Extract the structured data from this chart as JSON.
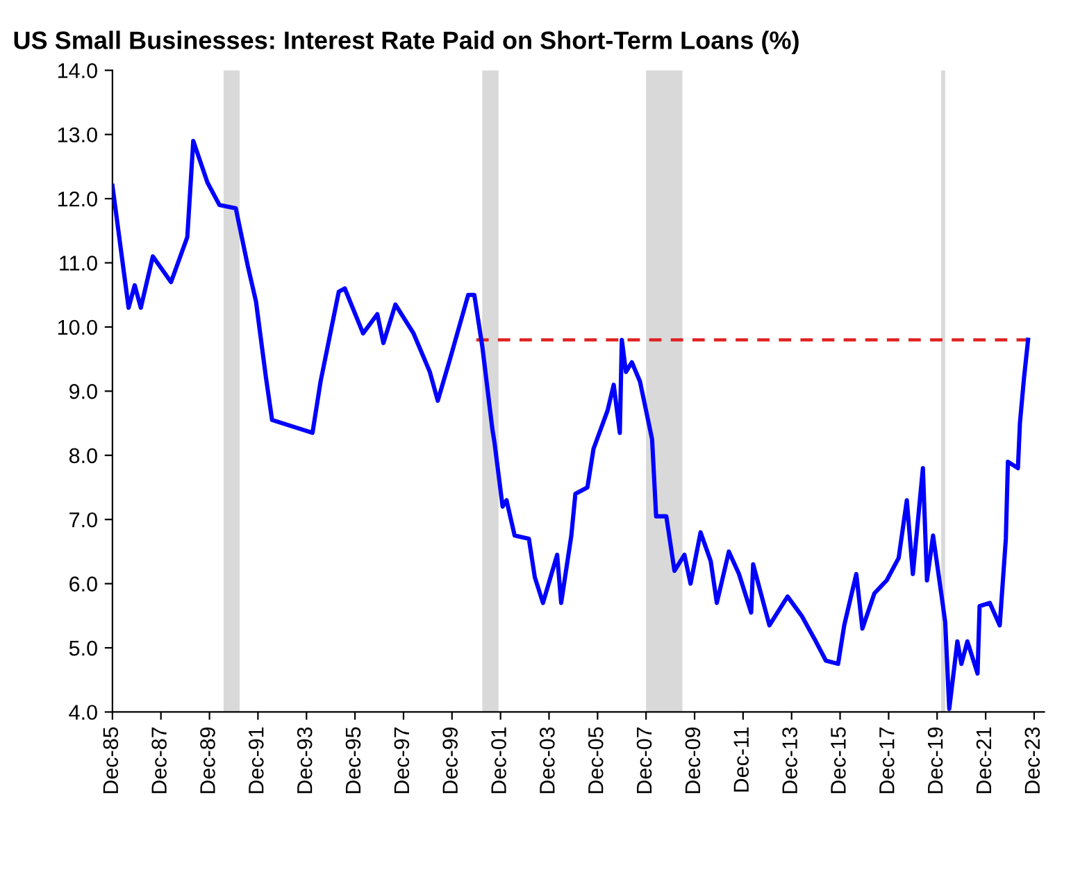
{
  "chart_data": {
    "type": "line",
    "title": "US Small Businesses: Interest Rate Paid on Short-Term Loans (%)",
    "grid": false,
    "marker": "none",
    "xlim": [
      "1985-12",
      "2024-05"
    ],
    "xticks": [
      {
        "value": "1985-12",
        "label": "Dec-85"
      },
      {
        "value": "1987-12",
        "label": "Dec-87"
      },
      {
        "value": "1989-12",
        "label": "Dec-89"
      },
      {
        "value": "1991-12",
        "label": "Dec-91"
      },
      {
        "value": "1993-12",
        "label": "Dec-93"
      },
      {
        "value": "1995-12",
        "label": "Dec-95"
      },
      {
        "value": "1997-12",
        "label": "Dec-97"
      },
      {
        "value": "1999-12",
        "label": "Dec-99"
      },
      {
        "value": "2001-12",
        "label": "Dec-01"
      },
      {
        "value": "2003-12",
        "label": "Dec-03"
      },
      {
        "value": "2005-12",
        "label": "Dec-05"
      },
      {
        "value": "2007-12",
        "label": "Dec-07"
      },
      {
        "value": "2009-12",
        "label": "Dec-09"
      },
      {
        "value": "2011-12",
        "label": "Dec-11"
      },
      {
        "value": "2013-12",
        "label": "Dec-13"
      },
      {
        "value": "2015-12",
        "label": "Dec-15"
      },
      {
        "value": "2017-12",
        "label": "Dec-17"
      },
      {
        "value": "2019-12",
        "label": "Dec-19"
      },
      {
        "value": "2021-12",
        "label": "Dec-21"
      },
      {
        "value": "2023-12",
        "label": "Dec-23"
      }
    ],
    "ylim": [
      4,
      14
    ],
    "yticks": [
      {
        "value": 4,
        "label": "4.0"
      },
      {
        "value": 5,
        "label": "5.0"
      },
      {
        "value": 6,
        "label": "6.0"
      },
      {
        "value": 7,
        "label": "7.0"
      },
      {
        "value": 8,
        "label": "8.0"
      },
      {
        "value": 9,
        "label": "9.0"
      },
      {
        "value": 10,
        "label": "10.0"
      },
      {
        "value": 11,
        "label": "11.0"
      },
      {
        "value": 12,
        "label": "12.0"
      },
      {
        "value": 13,
        "label": "13.0"
      },
      {
        "value": 14,
        "label": "14.0"
      }
    ],
    "bands": [
      {
        "axis": "x",
        "from": "1990-07",
        "to": "1991-03",
        "color": "#d9d9d9"
      },
      {
        "axis": "x",
        "from": "2001-03",
        "to": "2001-11",
        "color": "#d9d9d9"
      },
      {
        "axis": "x",
        "from": "2007-12",
        "to": "2009-06",
        "color": "#d9d9d9"
      },
      {
        "axis": "x",
        "from": "2020-02",
        "to": "2020-04",
        "color": "#d9d9d9"
      }
    ],
    "series": [
      {
        "color": "#0000ff",
        "line_style": "solid",
        "x": [
          "1985-12",
          "1986-08",
          "1986-11",
          "1987-02",
          "1987-08",
          "1988-05",
          "1989-01",
          "1989-04",
          "1989-11",
          "1990-05",
          "1991-01",
          "1991-07",
          "1991-11",
          "1992-04",
          "1992-07",
          "1993-05",
          "1994-03",
          "1994-07",
          "1995-04",
          "1995-07",
          "1996-04",
          "1996-11",
          "1997-02",
          "1997-08",
          "1998-05",
          "1999-01",
          "1999-05",
          "1999-11",
          "2000-08",
          "2000-11",
          "2001-03",
          "2001-08",
          "2001-09",
          "2002-01",
          "2002-03",
          "2002-07",
          "2003-02",
          "2003-05",
          "2003-09",
          "2004-04",
          "2004-06",
          "2004-11",
          "2005-01",
          "2005-07",
          "2005-10",
          "2006-05",
          "2006-08",
          "2006-11",
          "2006-12",
          "2007-02",
          "2007-05",
          "2007-09",
          "2008-03",
          "2008-05",
          "2008-10",
          "2009-02",
          "2009-07",
          "2009-10",
          "2010-03",
          "2010-08",
          "2010-11",
          "2011-05",
          "2011-10",
          "2012-04",
          "2012-05",
          "2013-01",
          "2013-10",
          "2014-05",
          "2014-12",
          "2015-05",
          "2015-11",
          "2016-02",
          "2016-08",
          "2016-11",
          "2017-05",
          "2017-11",
          "2018-05",
          "2018-09",
          "2018-12",
          "2019-05",
          "2019-07",
          "2019-10",
          "2020-02",
          "2020-04",
          "2020-06",
          "2020-10",
          "2020-12",
          "2021-03",
          "2021-08",
          "2021-09",
          "2022-02",
          "2022-07",
          "2022-10",
          "2022-11",
          "2023-04",
          "2023-05",
          "2023-07",
          "2023-09"
        ],
        "values": [
          12.2,
          10.3,
          10.65,
          10.3,
          11.1,
          10.7,
          11.4,
          12.9,
          12.25,
          11.9,
          11.85,
          10.95,
          10.4,
          9.2,
          8.55,
          8.45,
          8.35,
          9.15,
          10.55,
          10.6,
          9.9,
          10.2,
          9.75,
          10.35,
          9.9,
          9.3,
          8.85,
          9.5,
          10.5,
          10.5,
          9.7,
          8.4,
          8.2,
          7.2,
          7.3,
          6.75,
          6.7,
          6.1,
          5.7,
          6.45,
          5.7,
          6.75,
          7.4,
          7.5,
          8.1,
          8.7,
          9.1,
          8.35,
          9.8,
          9.3,
          9.45,
          9.15,
          8.25,
          7.05,
          7.05,
          6.2,
          6.45,
          6.0,
          6.8,
          6.35,
          5.7,
          6.5,
          6.15,
          5.55,
          6.3,
          5.35,
          5.8,
          5.5,
          5.1,
          4.8,
          4.75,
          5.35,
          6.15,
          5.3,
          5.85,
          6.05,
          6.4,
          7.3,
          6.15,
          7.8,
          6.05,
          6.75,
          5.85,
          5.4,
          4.05,
          5.1,
          4.75,
          5.1,
          4.6,
          5.65,
          5.7,
          5.35,
          6.7,
          7.9,
          7.8,
          8.5,
          9.2,
          9.8
        ]
      },
      {
        "type": "line",
        "color": "#e02020",
        "line_style": "dashed",
        "x": [
          "2000-12",
          "2023-09"
        ],
        "values": [
          9.8,
          9.8
        ]
      }
    ]
  }
}
